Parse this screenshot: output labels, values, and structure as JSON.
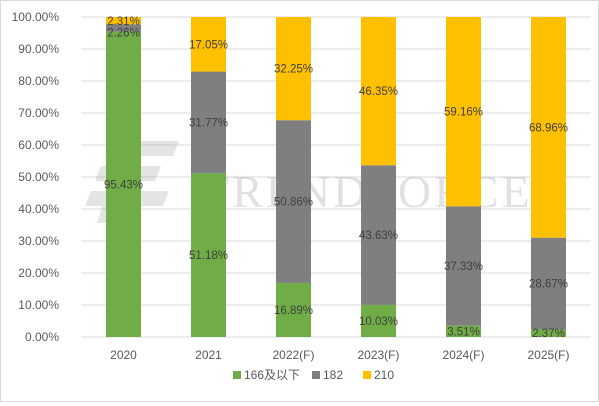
{
  "chart_data": {
    "type": "bar",
    "stacked": true,
    "percent": true,
    "categories": [
      "2020",
      "2021",
      "2022(F)",
      "2023(F)",
      "2024(F)",
      "2025(F)"
    ],
    "series": [
      {
        "name": "166及以下",
        "color": "#70AD47",
        "values": [
          95.43,
          51.18,
          16.89,
          10.03,
          3.51,
          2.37
        ],
        "labels": [
          "95.43%",
          "51.18%",
          "16.89%",
          "10.03%",
          "3.51%",
          "2.37%"
        ]
      },
      {
        "name": "182",
        "color": "#7F7F7F",
        "values": [
          2.26,
          31.77,
          50.86,
          43.63,
          37.33,
          28.67
        ],
        "labels": [
          "2.26%",
          "31.77%",
          "50.86%",
          "43.63%",
          "37.33%",
          "28.67%"
        ]
      },
      {
        "name": "210",
        "color": "#FFC000",
        "values": [
          2.31,
          17.05,
          32.25,
          46.35,
          59.16,
          68.96
        ],
        "labels": [
          "2.31%",
          "17.05%",
          "32.25%",
          "46.35%",
          "59.16%",
          "68.96%"
        ]
      }
    ],
    "yticks": [
      "0.00%",
      "10.00%",
      "20.00%",
      "30.00%",
      "40.00%",
      "50.00%",
      "60.00%",
      "70.00%",
      "80.00%",
      "90.00%",
      "100.00%"
    ],
    "ylim": [
      0,
      100
    ],
    "grid": true,
    "legend_position": "bottom",
    "watermark": "TRENDFORCE"
  }
}
